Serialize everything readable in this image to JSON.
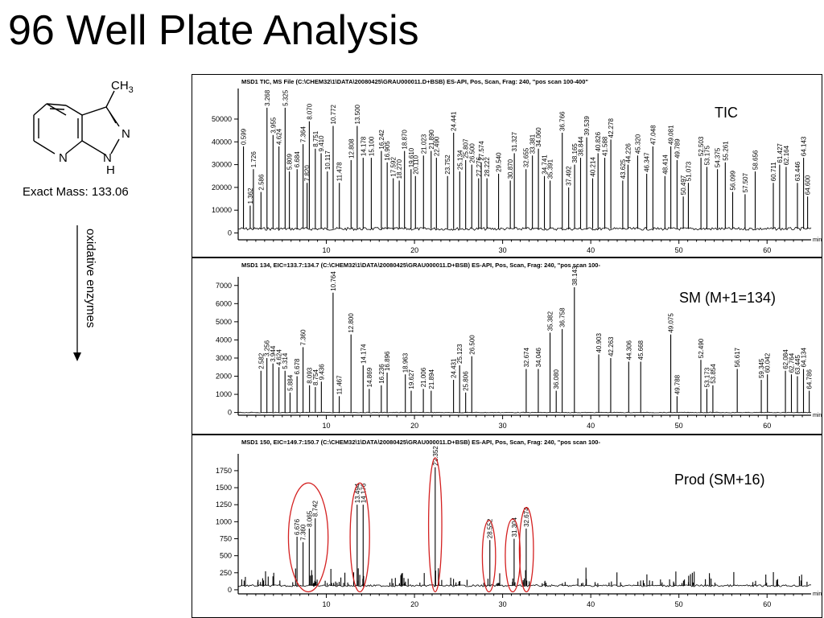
{
  "title": "96 Well Plate Analysis",
  "molecule": {
    "substituent": "CH",
    "substituent_sub": "3",
    "atom_n1": "N",
    "atom_n2": "N",
    "atom_nh": "N",
    "atom_h": "H",
    "exact_mass": "Exact Mass: 133.06"
  },
  "arrow_label": "oxidative enzymes",
  "colors": {
    "ellipse": "#d42020"
  },
  "chart_data": [
    {
      "type": "bar",
      "header": "MSD1 TIC, MS File (C:\\CHEM32\\1\\DATA\\20080425\\GRAU000011.D+BSB)   ES-API, Pos, Scan, Frag: 240, \"pos scan 100-400\"",
      "label": "TIC",
      "xlabel": "min",
      "xlim": [
        0,
        65
      ],
      "ylim": [
        -3000,
        62000
      ],
      "xticks": [
        10,
        20,
        30,
        40,
        50,
        60
      ],
      "yticks": [
        0,
        10000,
        20000,
        30000,
        40000,
        50000
      ],
      "ytick_labels": [
        "0",
        "10000",
        "20000",
        "30000",
        "40000",
        "50000"
      ],
      "baseline": 1800,
      "peaks": [
        {
          "x": 0.599,
          "y": 38000,
          "label": "0.599"
        },
        {
          "x": 1.362,
          "y": 12000,
          "label": "1.362"
        },
        {
          "x": 1.726,
          "y": 28000,
          "label": "1.726"
        },
        {
          "x": 2.586,
          "y": 18000,
          "label": "2.586"
        },
        {
          "x": 3.268,
          "y": 55000,
          "label": "3.268"
        },
        {
          "x": 3.955,
          "y": 43000,
          "label": "3.955"
        },
        {
          "x": 4.624,
          "y": 38000,
          "label": "4.624"
        },
        {
          "x": 5.325,
          "y": 55000,
          "label": "5.325"
        },
        {
          "x": 5.809,
          "y": 27000,
          "label": "5.809"
        },
        {
          "x": 6.684,
          "y": 28000,
          "label": "6.684"
        },
        {
          "x": 7.364,
          "y": 39000,
          "label": "7.364"
        },
        {
          "x": 7.82,
          "y": 22000,
          "label": "7.820"
        },
        {
          "x": 8.07,
          "y": 49000,
          "label": "8.070"
        },
        {
          "x": 8.751,
          "y": 37000,
          "label": "8.751"
        },
        {
          "x": 9.41,
          "y": 35000,
          "label": "9.410"
        },
        {
          "x": 10.117,
          "y": 27000,
          "label": "10.117"
        },
        {
          "x": 10.772,
          "y": 47000,
          "label": "10.772"
        },
        {
          "x": 11.478,
          "y": 22000,
          "label": "11.478"
        },
        {
          "x": 12.808,
          "y": 32000,
          "label": "12.808"
        },
        {
          "x": 13.5,
          "y": 47000,
          "label": "13.500"
        },
        {
          "x": 14.178,
          "y": 33000,
          "label": "14.178"
        },
        {
          "x": 15.1,
          "y": 33000,
          "label": "15.100"
        },
        {
          "x": 16.242,
          "y": 36000,
          "label": "16.242"
        },
        {
          "x": 16.905,
          "y": 31000,
          "label": "16.905"
        },
        {
          "x": 17.592,
          "y": 24000,
          "label": "17.592"
        },
        {
          "x": 18.27,
          "y": 23000,
          "label": "18.270"
        },
        {
          "x": 18.87,
          "y": 36000,
          "label": "18.870"
        },
        {
          "x": 19.61,
          "y": 28000,
          "label": "19.610"
        },
        {
          "x": 20.11,
          "y": 25000,
          "label": "20.110"
        },
        {
          "x": 21.023,
          "y": 34000,
          "label": "21.023"
        },
        {
          "x": 21.89,
          "y": 36000,
          "label": "21.890"
        },
        {
          "x": 22.49,
          "y": 33000,
          "label": "22.490"
        },
        {
          "x": 23.752,
          "y": 25000,
          "label": "23.752"
        },
        {
          "x": 24.441,
          "y": 44000,
          "label": "24.441"
        },
        {
          "x": 25.134,
          "y": 27000,
          "label": "25.134"
        },
        {
          "x": 25.807,
          "y": 32000,
          "label": "25.807"
        },
        {
          "x": 26.5,
          "y": 30000,
          "label": "26.500"
        },
        {
          "x": 27.276,
          "y": 24000,
          "label": "27.276"
        },
        {
          "x": 27.574,
          "y": 31000,
          "label": "27.574"
        },
        {
          "x": 28.222,
          "y": 24000,
          "label": "28.222"
        },
        {
          "x": 29.54,
          "y": 26000,
          "label": "29.540"
        },
        {
          "x": 30.87,
          "y": 23000,
          "label": "30.870"
        },
        {
          "x": 31.327,
          "y": 35000,
          "label": "31.327"
        },
        {
          "x": 32.655,
          "y": 28000,
          "label": "32.655"
        },
        {
          "x": 33.381,
          "y": 34000,
          "label": "33.381"
        },
        {
          "x": 34.06,
          "y": 37000,
          "label": "34.060"
        },
        {
          "x": 34.741,
          "y": 25000,
          "label": "34.741"
        },
        {
          "x": 35.391,
          "y": 23000,
          "label": "35.391"
        },
        {
          "x": 36.766,
          "y": 44000,
          "label": "36.766"
        },
        {
          "x": 37.492,
          "y": 20000,
          "label": "37.492"
        },
        {
          "x": 38.165,
          "y": 30000,
          "label": "38.165"
        },
        {
          "x": 38.844,
          "y": 33000,
          "label": "38.844"
        },
        {
          "x": 39.539,
          "y": 42000,
          "label": "39.539"
        },
        {
          "x": 40.214,
          "y": 24000,
          "label": "40.214"
        },
        {
          "x": 40.826,
          "y": 35000,
          "label": "40.826"
        },
        {
          "x": 41.588,
          "y": 33000,
          "label": "41.588"
        },
        {
          "x": 42.278,
          "y": 41000,
          "label": "42.278"
        },
        {
          "x": 43.625,
          "y": 23000,
          "label": "43.625"
        },
        {
          "x": 44.226,
          "y": 30000,
          "label": "44.226"
        },
        {
          "x": 45.32,
          "y": 34000,
          "label": "45.320"
        },
        {
          "x": 46.347,
          "y": 26000,
          "label": "46.347"
        },
        {
          "x": 47.048,
          "y": 38000,
          "label": "47.048"
        },
        {
          "x": 48.414,
          "y": 25000,
          "label": "48.414"
        },
        {
          "x": 49.081,
          "y": 38000,
          "label": "49.081"
        },
        {
          "x": 49.789,
          "y": 32000,
          "label": "49.789"
        },
        {
          "x": 50.497,
          "y": 16000,
          "label": "50.497"
        },
        {
          "x": 51.073,
          "y": 22000,
          "label": "51.073"
        },
        {
          "x": 52.503,
          "y": 33000,
          "label": "52.503"
        },
        {
          "x": 53.175,
          "y": 29000,
          "label": "53.175"
        },
        {
          "x": 54.375,
          "y": 28000,
          "label": "54.375"
        },
        {
          "x": 55.261,
          "y": 31000,
          "label": "55.261"
        },
        {
          "x": 56.099,
          "y": 18000,
          "label": "56.099"
        },
        {
          "x": 57.507,
          "y": 17000,
          "label": "57.507"
        },
        {
          "x": 58.656,
          "y": 27000,
          "label": "58.656"
        },
        {
          "x": 60.711,
          "y": 22000,
          "label": "60.711"
        },
        {
          "x": 61.427,
          "y": 30000,
          "label": "61.427"
        },
        {
          "x": 62.164,
          "y": 29000,
          "label": "62.164"
        },
        {
          "x": 63.446,
          "y": 22000,
          "label": "63.446"
        },
        {
          "x": 64.143,
          "y": 33000,
          "label": "64.143"
        },
        {
          "x": 64.6,
          "y": 16000,
          "label": "64.600"
        }
      ]
    },
    {
      "type": "bar",
      "header": "MSD1 134, EIC=133.7:134.7 (C:\\CHEM32\\1\\DATA\\20080425\\GRAU000011.D+BSB)   ES-API, Pos, Scan, Frag: 240, \"pos scan 100-",
      "label": "SM (M+1=134)",
      "xlabel": "min",
      "xlim": [
        0,
        65
      ],
      "ylim": [
        -150,
        7300
      ],
      "xticks": [
        10,
        20,
        30,
        40,
        50,
        60
      ],
      "yticks": [
        0,
        1000,
        2000,
        3000,
        4000,
        5000,
        6000,
        7000
      ],
      "ytick_labels": [
        "0",
        "1000",
        "2000",
        "3000",
        "4000",
        "5000",
        "6000",
        "7000"
      ],
      "baseline": 0,
      "peaks": [
        {
          "x": 2.582,
          "y": 2300,
          "label": "2.582"
        },
        {
          "x": 3.256,
          "y": 3000,
          "label": "3.256"
        },
        {
          "x": 3.944,
          "y": 2700,
          "label": "3.944"
        },
        {
          "x": 4.624,
          "y": 2500,
          "label": "4.624"
        },
        {
          "x": 5.314,
          "y": 2300,
          "label": "5.314"
        },
        {
          "x": 5.884,
          "y": 1100,
          "label": "5.884"
        },
        {
          "x": 6.678,
          "y": 2000,
          "label": "6.678"
        },
        {
          "x": 7.36,
          "y": 3600,
          "label": "7.360"
        },
        {
          "x": 8.093,
          "y": 1500,
          "label": "8.093"
        },
        {
          "x": 8.754,
          "y": 1400,
          "label": "8.754"
        },
        {
          "x": 9.436,
          "y": 1700,
          "label": "9.436"
        },
        {
          "x": 10.764,
          "y": 6600,
          "label": "10.764"
        },
        {
          "x": 11.467,
          "y": 900,
          "label": "11.467"
        },
        {
          "x": 12.8,
          "y": 4300,
          "label": "12.800"
        },
        {
          "x": 14.174,
          "y": 2600,
          "label": "14.174"
        },
        {
          "x": 14.869,
          "y": 1300,
          "label": "14.869"
        },
        {
          "x": 16.236,
          "y": 1500,
          "label": "16.236"
        },
        {
          "x": 16.896,
          "y": 2200,
          "label": "16.896"
        },
        {
          "x": 18.963,
          "y": 2100,
          "label": "18.963"
        },
        {
          "x": 19.627,
          "y": 1200,
          "label": "19.627"
        },
        {
          "x": 21.006,
          "y": 1300,
          "label": "21.006"
        },
        {
          "x": 21.894,
          "y": 1200,
          "label": "21.894"
        },
        {
          "x": 24.431,
          "y": 1800,
          "label": "24.431"
        },
        {
          "x": 25.123,
          "y": 2600,
          "label": "25.123"
        },
        {
          "x": 25.806,
          "y": 1100,
          "label": "25.806"
        },
        {
          "x": 26.5,
          "y": 3100,
          "label": "26.500"
        },
        {
          "x": 32.674,
          "y": 2400,
          "label": "32.674"
        },
        {
          "x": 34.046,
          "y": 2400,
          "label": "34.046"
        },
        {
          "x": 35.382,
          "y": 4400,
          "label": "35.382"
        },
        {
          "x": 36.08,
          "y": 1200,
          "label": "36.080"
        },
        {
          "x": 36.758,
          "y": 4600,
          "label": "36.758"
        },
        {
          "x": 38.143,
          "y": 6900,
          "label": "38.143"
        },
        {
          "x": 40.903,
          "y": 3200,
          "label": "40.903"
        },
        {
          "x": 42.263,
          "y": 3000,
          "label": "42.263"
        },
        {
          "x": 44.306,
          "y": 2800,
          "label": "44.306"
        },
        {
          "x": 45.668,
          "y": 2800,
          "label": "45.668"
        },
        {
          "x": 49.075,
          "y": 4300,
          "label": "49.075"
        },
        {
          "x": 49.788,
          "y": 900,
          "label": "49.788"
        },
        {
          "x": 52.49,
          "y": 2900,
          "label": "52.490"
        },
        {
          "x": 53.173,
          "y": 1300,
          "label": "53.173"
        },
        {
          "x": 53.854,
          "y": 1500,
          "label": "53.854"
        },
        {
          "x": 56.617,
          "y": 2400,
          "label": "56.617"
        },
        {
          "x": 59.345,
          "y": 1800,
          "label": "59.345"
        },
        {
          "x": 60.042,
          "y": 2100,
          "label": "60.042"
        },
        {
          "x": 62.084,
          "y": 2300,
          "label": "62.084"
        },
        {
          "x": 62.764,
          "y": 2100,
          "label": "62.764"
        },
        {
          "x": 63.445,
          "y": 2000,
          "label": "63.445"
        },
        {
          "x": 64.134,
          "y": 2400,
          "label": "64.134"
        },
        {
          "x": 64.786,
          "y": 1200,
          "label": "64.786"
        }
      ]
    },
    {
      "type": "bar",
      "header": "MSD1 150, EIC=149.7:150.7 (C:\\CHEM32\\1\\DATA\\20080425\\GRAU000011.D+BSB)   ES-API, Pos, Scan, Frag: 240, \"pos scan 100-",
      "label": "Prod (SM+16)",
      "xlabel": "min",
      "xlim": [
        0,
        65
      ],
      "ylim": [
        -60,
        1950
      ],
      "xticks": [
        10,
        20,
        30,
        40,
        50,
        60
      ],
      "yticks": [
        0,
        250,
        500,
        750,
        1000,
        1250,
        1500,
        1750
      ],
      "ytick_labels": [
        "0",
        "250",
        "500",
        "750",
        "1000",
        "1250",
        "1500",
        "1750"
      ],
      "baseline": 60,
      "peaks": [
        {
          "x": 6.676,
          "y": 780,
          "label": "6.676"
        },
        {
          "x": 7.36,
          "y": 700,
          "label": "7.360"
        },
        {
          "x": 8.065,
          "y": 900,
          "label": "8.065"
        },
        {
          "x": 8.742,
          "y": 1050,
          "label": "8.742"
        },
        {
          "x": 13.494,
          "y": 1250,
          "label": "13.494"
        },
        {
          "x": 14.176,
          "y": 1250,
          "label": "14.176"
        },
        {
          "x": 22.352,
          "y": 1800,
          "label": "22.352"
        },
        {
          "x": 28.552,
          "y": 730,
          "label": "28.552"
        },
        {
          "x": 31.304,
          "y": 750,
          "label": "31.304"
        },
        {
          "x": 32.674,
          "y": 900,
          "label": "32.674"
        }
      ],
      "highlights": [
        {
          "x_from": 5.7,
          "x_to": 10.2,
          "y_from": -30,
          "y_to": 1570
        },
        {
          "x_from": 12.7,
          "x_to": 14.9,
          "y_from": -30,
          "y_to": 1570
        },
        {
          "x_from": 21.6,
          "x_to": 23.1,
          "y_from": -30,
          "y_to": 1940
        },
        {
          "x_from": 27.7,
          "x_to": 29.2,
          "y_from": -30,
          "y_to": 1020
        },
        {
          "x_from": 30.3,
          "x_to": 32.0,
          "y_from": -30,
          "y_to": 1040
        },
        {
          "x_from": 31.9,
          "x_to": 33.5,
          "y_from": -30,
          "y_to": 1210
        }
      ]
    }
  ]
}
